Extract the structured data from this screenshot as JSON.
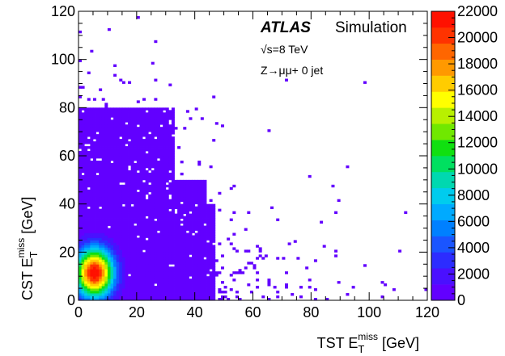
{
  "chart_data": {
    "type": "heatmap",
    "xlabel": {
      "main": "TST E",
      "sub": "T",
      "sup": "miss",
      "unit": " [GeV]"
    },
    "ylabel": {
      "main": "CST E",
      "sub": "T",
      "sup": "miss",
      "unit": " [GeV]"
    },
    "xlim": [
      0,
      120
    ],
    "ylim": [
      0,
      120
    ],
    "xticks": [
      0,
      20,
      40,
      60,
      80,
      100,
      120
    ],
    "yticks": [
      0,
      20,
      40,
      60,
      80,
      100,
      120
    ],
    "zlim": [
      0,
      22000
    ],
    "zticks": [
      0,
      2000,
      4000,
      6000,
      8000,
      10000,
      12000,
      14000,
      16000,
      18000,
      20000,
      22000
    ],
    "peak": {
      "x": 5.5,
      "y": 11.5,
      "value": 22000
    },
    "core_width": {
      "x": 4.5,
      "y": 7.0
    },
    "palette": [
      "#6200ff",
      "#4a10ff",
      "#2c2cff",
      "#1a55ff",
      "#0080ff",
      "#00aaff",
      "#00ccee",
      "#00d8b0",
      "#00e060",
      "#10e010",
      "#70e800",
      "#b8f000",
      "#ffff00",
      "#ffcc00",
      "#ff9900",
      "#ff6600",
      "#ff3300",
      "#ff1100"
    ],
    "annotations": {
      "atlas": "ATLAS",
      "simulation": "Simulation",
      "energy": "√s=8 TeV",
      "process": "Z→μμ+ 0 jet"
    }
  }
}
